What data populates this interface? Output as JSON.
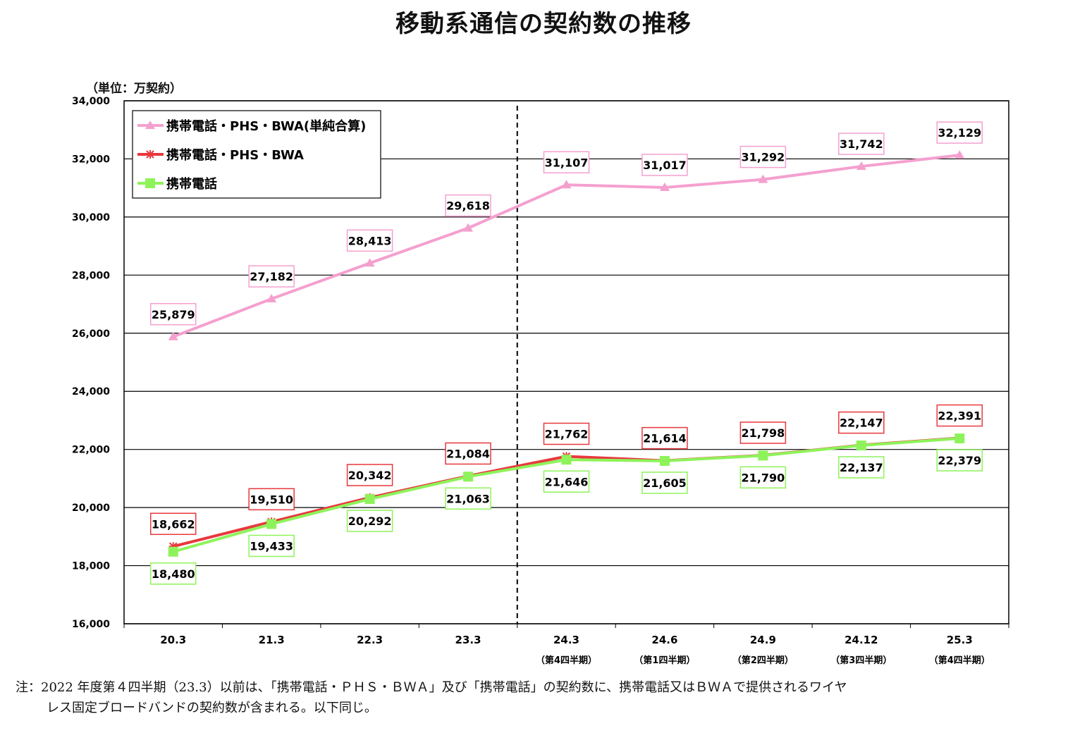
{
  "chart_data": {
    "type": "line",
    "title": "移動系通信の契約数の推移",
    "ylabel": "（単位：万契約）",
    "xlabel": "",
    "ylim": [
      16000,
      34000
    ],
    "yticks": [
      "16,000",
      "18,000",
      "20,000",
      "22,000",
      "24,000",
      "26,000",
      "28,000",
      "30,000",
      "32,000",
      "34,000"
    ],
    "ytick_values": [
      16000,
      18000,
      20000,
      22000,
      24000,
      26000,
      28000,
      30000,
      32000,
      34000
    ],
    "grid": true,
    "legend_position": "top-left",
    "categories": [
      "20.3",
      "21.3",
      "22.3",
      "23.3",
      "24.3",
      "24.6",
      "24.9",
      "24.12",
      "25.3"
    ],
    "sublabels": [
      "",
      "",
      "",
      "",
      "（第4四半期）",
      "（第1四半期）",
      "（第2四半期）",
      "（第3四半期）",
      "（第4四半期）"
    ],
    "divider_after_category": "23.3",
    "series": [
      {
        "name": "携帯電話・PHS・BWA(単純合算)",
        "color": "#f4a0cf",
        "marker": "triangle",
        "label_pos": "above",
        "values": [
          25879,
          27182,
          28413,
          29618,
          31107,
          31017,
          31292,
          31742,
          32129
        ],
        "labels": [
          "25,879",
          "27,182",
          "28,413",
          "29,618",
          "31,107",
          "31,017",
          "31,292",
          "31,742",
          "32,129"
        ]
      },
      {
        "name": "携帯電話・PHS・BWA",
        "color": "#e8383d",
        "marker": "star",
        "label_pos": "above",
        "values": [
          18662,
          19510,
          20342,
          21084,
          21762,
          21614,
          21798,
          22147,
          22391
        ],
        "labels": [
          "18,662",
          "19,510",
          "20,342",
          "21,084",
          "21,762",
          "21,614",
          "21,798",
          "22,147",
          "22,391"
        ]
      },
      {
        "name": "携帯電話",
        "color": "#8ef35a",
        "marker": "square",
        "label_pos": "below",
        "values": [
          18480,
          19433,
          20292,
          21063,
          21646,
          21605,
          21790,
          22137,
          22379
        ],
        "labels": [
          "18,480",
          "19,433",
          "20,292",
          "21,063",
          "21,646",
          "21,605",
          "21,790",
          "22,137",
          "22,379"
        ]
      }
    ]
  },
  "note": {
    "line1": "注：2022 年度第４四半期（23.3）以前は、「携帯電話・ＰＨＳ・ＢＷＡ」及び「携帯電話」の契約数に、携帯電話又はＢＷＡで提供されるワイヤ",
    "line2": "レス固定ブロードバンドの契約数が含まれる。以下同じ。"
  }
}
